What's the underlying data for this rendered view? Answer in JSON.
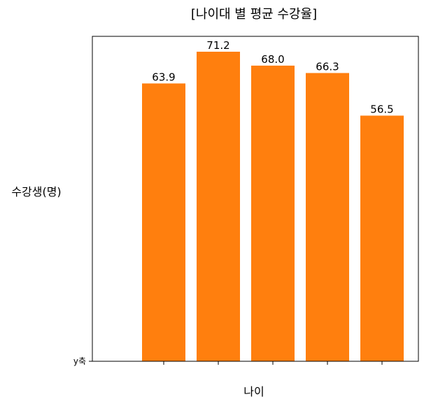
{
  "chart_data": {
    "type": "bar",
    "title": "[나이대 별 평균 수강율]",
    "xlabel": "나이",
    "ylabel": "수강생(명)",
    "y_tick_label": "y축",
    "categories": [
      "",
      "",
      "",
      "",
      ""
    ],
    "values": [
      63.9,
      71.2,
      68.0,
      66.3,
      56.5
    ],
    "value_labels": [
      "63.9",
      "71.2",
      "68.0",
      "66.3",
      "56.5"
    ],
    "ylim": [
      0,
      71.2
    ],
    "bar_color": "#ff7f0e",
    "grid": false,
    "legend": "none"
  }
}
